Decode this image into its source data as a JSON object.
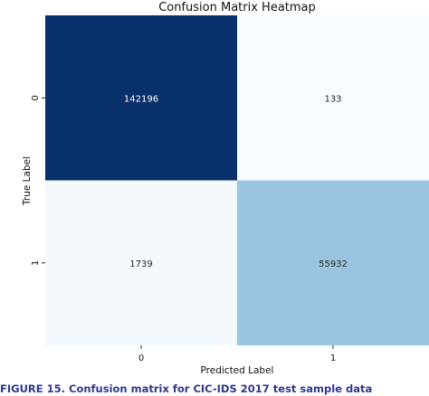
{
  "chart_data": {
    "type": "heatmap",
    "title": "Confusion Matrix Heatmap",
    "xlabel": "Predicted Label",
    "ylabel": "True Label",
    "x_categories": [
      "0",
      "1"
    ],
    "y_categories": [
      "0",
      "1"
    ],
    "values": [
      [
        142196,
        133
      ],
      [
        1739,
        55932
      ]
    ],
    "value_labels": [
      [
        "142196",
        "133"
      ],
      [
        "1739",
        "55932"
      ]
    ],
    "colormap": "Blues",
    "colorbar": false,
    "colors": {
      "high": "#08306b",
      "mid": "#97c4df",
      "low": "#f7fbff",
      "text_dark": "#262626",
      "text_light": "#ffffff"
    }
  },
  "caption": {
    "text": "FIGURE 15.  Confusion matrix for CIC-IDS 2017 test sample data"
  }
}
